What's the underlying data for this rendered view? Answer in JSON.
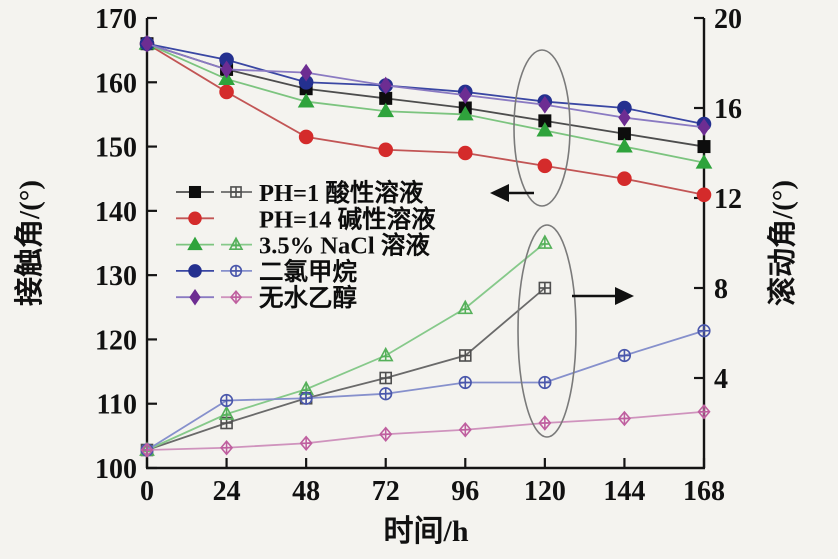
{
  "figure": {
    "background": "#f4f3ef",
    "axis_color": "#141414"
  },
  "chart_data": {
    "type": "line",
    "title": "",
    "xlabel": "时间/h",
    "ylabel_left": "接触角/(°)",
    "ylabel_right": "滚动角/(°)",
    "x_axis": {
      "min": 0,
      "max": 168,
      "ticks": [
        0,
        24,
        48,
        72,
        96,
        120,
        144,
        168
      ]
    },
    "left_axis": {
      "label": "接触角/(°)",
      "min": 100,
      "max": 170,
      "ticks": [
        100,
        110,
        120,
        130,
        140,
        150,
        160,
        170
      ]
    },
    "right_axis": {
      "label": "滚动角/(°)",
      "min": 0,
      "max": 20,
      "ticks": [
        4,
        8,
        12,
        16,
        20
      ]
    },
    "grid": false,
    "series": [
      {
        "id": "ph1-contact",
        "label": "PH=1 酸性溶液",
        "quantity": "contact-angle",
        "axis": "left",
        "marker": "square",
        "fill": "filled",
        "marker_color": "#0d0d0d",
        "line_color": "#4d4d4d",
        "x": [
          0,
          24,
          48,
          72,
          96,
          120,
          144,
          168
        ],
        "values": [
          166,
          162,
          159,
          157.5,
          156,
          154,
          152,
          150
        ]
      },
      {
        "id": "ph14-contact",
        "label": "PH=14 碱性溶液",
        "quantity": "contact-angle",
        "axis": "left",
        "marker": "circle",
        "fill": "filled",
        "marker_color": "#d42b2b",
        "line_color": "#c25555",
        "x": [
          0,
          24,
          48,
          72,
          96,
          120,
          144,
          168
        ],
        "values": [
          166,
          158.5,
          151.5,
          149.5,
          149,
          147,
          145,
          142.5
        ]
      },
      {
        "id": "nacl-contact",
        "label": "3.5% NaCl 溶液",
        "quantity": "contact-angle",
        "axis": "left",
        "marker": "triangle",
        "fill": "filled",
        "marker_color": "#2fa33c",
        "line_color": "#7cc47f",
        "x": [
          0,
          24,
          48,
          72,
          96,
          120,
          144,
          168
        ],
        "values": [
          166,
          160.5,
          157,
          155.5,
          155,
          152.5,
          150,
          147.5
        ]
      },
      {
        "id": "dcm-contact",
        "label": "二氯甲烷",
        "quantity": "contact-angle",
        "axis": "left",
        "marker": "circle",
        "fill": "filled",
        "marker_color": "#24308f",
        "line_color": "#3a47a3",
        "x": [
          0,
          24,
          48,
          72,
          96,
          120,
          144,
          168
        ],
        "values": [
          166,
          163.5,
          160,
          159.5,
          158.5,
          157,
          156,
          153.5
        ]
      },
      {
        "id": "ethanol-contact",
        "label": "无水乙醇",
        "quantity": "contact-angle",
        "axis": "left",
        "marker": "diamond",
        "fill": "filled",
        "marker_color": "#6d2d92",
        "line_color": "#8a7ac2",
        "x": [
          0,
          24,
          48,
          72,
          96,
          120,
          144,
          168
        ],
        "values": [
          166,
          162,
          161.5,
          159.5,
          158,
          156.5,
          154.5,
          153
        ]
      },
      {
        "id": "ph1-rolling",
        "label": "PH=1 酸性溶液",
        "quantity": "rolling-angle",
        "axis": "right",
        "marker": "square",
        "fill": "open",
        "marker_color": "#4f4f4f",
        "line_color": "#6a6a6a",
        "x": [
          0,
          24,
          48,
          72,
          96,
          120
        ],
        "values": [
          0.8,
          2,
          3.1,
          4,
          5,
          8
        ]
      },
      {
        "id": "nacl-rolling",
        "label": "3.5% NaCl 溶液",
        "quantity": "rolling-angle",
        "axis": "right",
        "marker": "triangle",
        "fill": "open",
        "marker_color": "#55b05a",
        "line_color": "#86c98a",
        "x": [
          0,
          24,
          48,
          72,
          96,
          120
        ],
        "values": [
          0.8,
          2.4,
          3.5,
          5,
          7.1,
          10
        ]
      },
      {
        "id": "dcm-rolling",
        "label": "二氯甲烷",
        "quantity": "rolling-angle",
        "axis": "right",
        "marker": "circle",
        "fill": "open",
        "marker_color": "#4a57ab",
        "line_color": "#8690cc",
        "x": [
          0,
          24,
          48,
          72,
          96,
          120,
          144,
          168
        ],
        "values": [
          0.8,
          3,
          3.1,
          3.3,
          3.8,
          3.8,
          5,
          6.1
        ]
      },
      {
        "id": "ethanol-rolling",
        "label": "无水乙醇",
        "quantity": "rolling-angle",
        "axis": "right",
        "marker": "diamond",
        "fill": "open",
        "marker_color": "#bf5f9f",
        "line_color": "#cf93bd",
        "x": [
          0,
          24,
          48,
          72,
          96,
          120,
          144,
          168
        ],
        "values": [
          0.8,
          0.9,
          1.1,
          1.5,
          1.7,
          2,
          2.2,
          2.5
        ]
      }
    ],
    "legend": {
      "position": "inside-left-middle",
      "items": [
        {
          "label": "PH=1 酸性溶液",
          "filled_ref": "ph1-contact",
          "open_ref": "ph1-rolling"
        },
        {
          "label": "PH=14 碱性溶液",
          "filled_ref": "ph14-contact",
          "open_ref": null
        },
        {
          "label": "3.5% NaCl 溶液",
          "filled_ref": "nacl-contact",
          "open_ref": "nacl-rolling"
        },
        {
          "label": "二氯甲烷",
          "filled_ref": "dcm-contact",
          "open_ref": "dcm-rolling"
        },
        {
          "label": "无水乙醇",
          "filled_ref": "ethanol-contact",
          "open_ref": "ethanol-rolling"
        }
      ]
    },
    "annotations": [
      {
        "name": "contact-angle-ellipse",
        "type": "ellipse",
        "cx": 542,
        "cy": 128,
        "rx": 28,
        "ry": 78,
        "color": "#7a7a7a"
      },
      {
        "name": "contact-angle-arrow",
        "type": "arrow",
        "x1": 534,
        "y1": 193,
        "x2": 490,
        "y2": 193,
        "dir": "left",
        "color": "#111111"
      },
      {
        "name": "rolling-angle-ellipse",
        "type": "ellipse",
        "cx": 547,
        "cy": 331,
        "rx": 29,
        "ry": 106,
        "color": "#7a7a7a"
      },
      {
        "name": "rolling-angle-arrow",
        "type": "arrow",
        "x1": 572,
        "y1": 296,
        "x2": 634,
        "y2": 296,
        "dir": "right",
        "color": "#111111"
      }
    ]
  }
}
